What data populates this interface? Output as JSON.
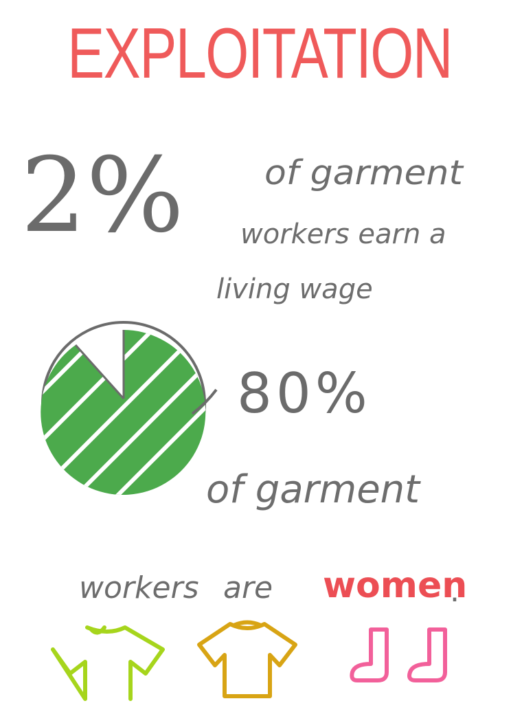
{
  "title": "EXPLOITATION",
  "stat1": {
    "value": "2%",
    "line1": "of garment",
    "line2": "workers earn a",
    "line3": "living wage"
  },
  "stat2": {
    "value": "80%",
    "line1": "of garment",
    "line2": "workers",
    "line3": "are",
    "highlight": "women",
    "end": "."
  },
  "pie": {
    "shaded_fraction": 0.8,
    "color": "#4caa4c"
  },
  "colors": {
    "title": "#ef5a5a",
    "text": "#6d6d6d",
    "highlight": "#ec4e54",
    "shirt1": "#a6d51c",
    "shirt2": "#d8a414",
    "socks": "#f2609a"
  },
  "icons": [
    "tshirt-icon",
    "tshirt-icon",
    "socks-icon"
  ]
}
